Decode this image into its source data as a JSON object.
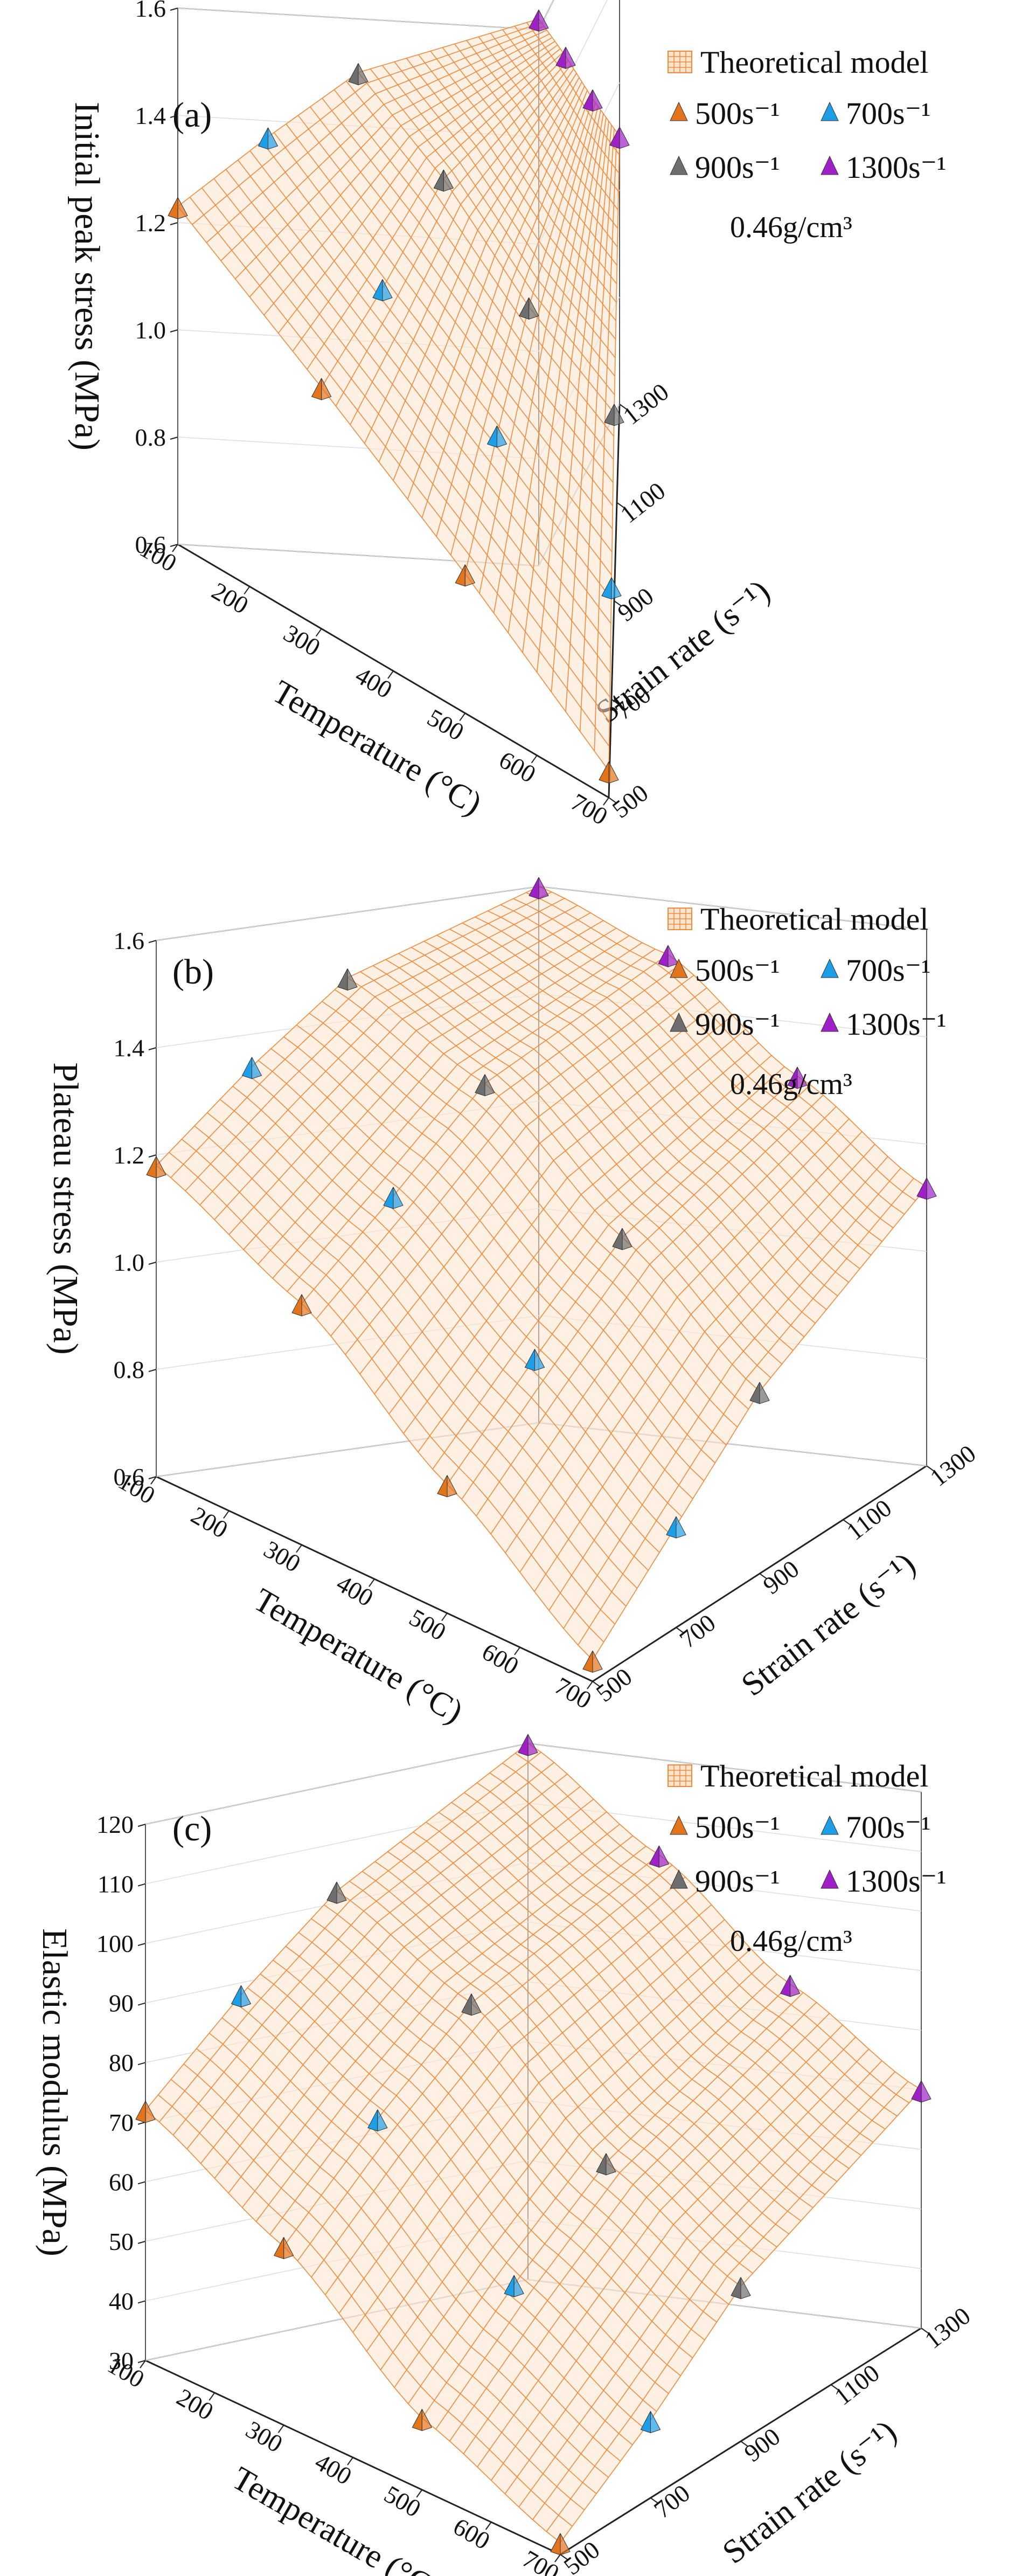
{
  "figure": {
    "common": {
      "x_label": "Temperature (°C)",
      "y_label": "Strain rate (s⁻¹)",
      "x_ticks": [
        100,
        200,
        300,
        400,
        500,
        600,
        700
      ],
      "y_ticks": [
        500,
        700,
        900,
        1100,
        1300
      ],
      "legend": {
        "surface_label": "Theoretical model",
        "series": [
          {
            "name": "500s⁻¹",
            "color": "#e2741c"
          },
          {
            "name": "700s⁻¹",
            "color": "#1f9ee8"
          },
          {
            "name": "900s⁻¹",
            "color": "#6e6e6e"
          },
          {
            "name": "1300s⁻¹",
            "color": "#a020c8"
          }
        ],
        "density": "0.46g/cm³"
      },
      "mesh_color": "#f08a3c",
      "surface_fill": "#fde3cc"
    }
  },
  "chart_data": [
    {
      "type": "surface3d+scatter3d",
      "panel": "(a)",
      "title": "",
      "zlabel": "Initial peak stress (MPa)",
      "xlabel": "Temperature (°C)",
      "ylabel": "Strain rate (s⁻¹)",
      "xlim": [
        100,
        700
      ],
      "ylim": [
        500,
        1300
      ],
      "zlim": [
        0.6,
        1.6
      ],
      "z_ticks": [
        0.6,
        0.8,
        1.0,
        1.2,
        1.4,
        1.6
      ],
      "z_tick_labels": [
        "0.6",
        "0.8",
        "1.0",
        "1.2",
        "1.4",
        "1.6"
      ],
      "surface_shape": "planar",
      "series": [
        {
          "name": "500s⁻¹",
          "points": [
            {
              "T": 100,
              "z": 1.23
            },
            {
              "T": 300,
              "z": 1.05
            },
            {
              "T": 500,
              "z": 0.86
            },
            {
              "T": 700,
              "z": 0.65
            }
          ]
        },
        {
          "name": "700s⁻¹",
          "points": [
            {
              "T": 100,
              "z": 1.37
            },
            {
              "T": 300,
              "z": 1.18
            },
            {
              "T": 500,
              "z": 1.0
            },
            {
              "T": 700,
              "z": 0.81
            }
          ]
        },
        {
          "name": "900s⁻¹",
          "points": [
            {
              "T": 100,
              "z": 1.5
            },
            {
              "T": 300,
              "z": 1.33
            },
            {
              "T": 500,
              "z": 1.12
            },
            {
              "T": 700,
              "z": 0.95
            }
          ]
        },
        {
          "name": "1300s⁻¹",
          "points": [
            {
              "T": 100,
              "z": 1.62
            },
            {
              "T": 300,
              "z": 1.45
            },
            {
              "T": 500,
              "z": 1.27
            },
            {
              "T": 700,
              "z": 1.1
            }
          ]
        }
      ]
    },
    {
      "type": "surface3d+scatter3d",
      "panel": "(b)",
      "title": "",
      "zlabel": "Plateau stress (MPa)",
      "xlabel": "Temperature (°C)",
      "ylabel": "Strain rate (s⁻¹)",
      "xlim": [
        100,
        700
      ],
      "ylim": [
        500,
        1300
      ],
      "zlim": [
        0.6,
        1.6
      ],
      "z_ticks": [
        0.6,
        0.8,
        1.0,
        1.2,
        1.4,
        1.6
      ],
      "z_tick_labels": [
        "0.6",
        "0.8",
        "1.0",
        "1.2",
        "1.4",
        "1.6"
      ],
      "surface_shape": "curved",
      "series": [
        {
          "name": "500s⁻¹",
          "points": [
            {
              "T": 100,
              "z": 1.18
            },
            {
              "T": 300,
              "z": 1.05
            },
            {
              "T": 500,
              "z": 0.84
            },
            {
              "T": 700,
              "z": 0.64
            }
          ]
        },
        {
          "name": "700s⁻¹",
          "points": [
            {
              "T": 100,
              "z": 1.34
            },
            {
              "T": 300,
              "z": 1.2
            },
            {
              "T": 500,
              "z": 1.0
            },
            {
              "T": 700,
              "z": 0.79
            }
          ]
        },
        {
          "name": "900s⁻¹",
          "points": [
            {
              "T": 100,
              "z": 1.48
            },
            {
              "T": 300,
              "z": 1.36
            },
            {
              "T": 500,
              "z": 1.15
            },
            {
              "T": 700,
              "z": 0.94
            }
          ]
        },
        {
          "name": "1300s⁻¹",
          "points": [
            {
              "T": 100,
              "z": 1.6
            },
            {
              "T": 300,
              "z": 1.5
            },
            {
              "T": 500,
              "z": 1.3
            },
            {
              "T": 700,
              "z": 1.12
            }
          ]
        }
      ]
    },
    {
      "type": "surface3d+scatter3d",
      "panel": "(c)",
      "title": "",
      "zlabel": "Elastic modulus (MPa)",
      "xlabel": "Temperature (°C)",
      "ylabel": "Strain rate (s⁻¹)",
      "xlim": [
        100,
        700
      ],
      "ylim": [
        500,
        1300
      ],
      "zlim": [
        30,
        120
      ],
      "z_ticks": [
        30,
        40,
        50,
        60,
        70,
        80,
        90,
        100,
        110,
        120
      ],
      "z_tick_labels": [
        "30",
        "40",
        "50",
        "60",
        "70",
        "80",
        "90",
        "100",
        "110",
        "120"
      ],
      "surface_shape": "sigmoid",
      "series": [
        {
          "name": "500s⁻¹",
          "points": [
            {
              "T": 100,
              "z": 72
            },
            {
              "T": 300,
              "z": 60
            },
            {
              "T": 500,
              "z": 42
            },
            {
              "T": 700,
              "z": 32
            }
          ]
        },
        {
          "name": "700s⁻¹",
          "points": [
            {
              "T": 100,
              "z": 88
            },
            {
              "T": 300,
              "z": 76
            },
            {
              "T": 500,
              "z": 57
            },
            {
              "T": 700,
              "z": 43
            }
          ]
        },
        {
          "name": "900s⁻¹",
          "points": [
            {
              "T": 100,
              "z": 102
            },
            {
              "T": 300,
              "z": 90
            },
            {
              "T": 500,
              "z": 70
            },
            {
              "T": 700,
              "z": 56
            }
          ]
        },
        {
          "name": "1300s⁻¹",
          "points": [
            {
              "T": 100,
              "z": 120
            },
            {
              "T": 300,
              "z": 104
            },
            {
              "T": 500,
              "z": 85
            },
            {
              "T": 700,
              "z": 70
            }
          ]
        }
      ]
    }
  ]
}
